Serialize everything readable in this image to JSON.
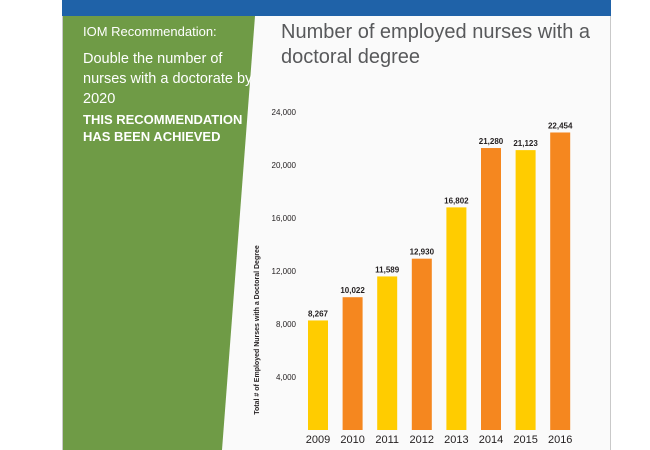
{
  "panel": {
    "label": "IOM Recommendation:",
    "text": "Double the number of nurses with a doctorate by 2020",
    "status": "THIS RECOMMENDATION HAS BEEN ACHIEVED"
  },
  "colors": {
    "banner": "#1f62a8",
    "panel_green": "#6f9b46",
    "bar_yellow": "#ffcc00",
    "bar_orange": "#f5871f"
  },
  "chart_data": {
    "type": "bar",
    "title": "Number of employed nurses with a doctoral degree",
    "ylabel": "Total # of Employed Nurses with a Doctoral Degree",
    "xlabel": "",
    "categories": [
      "2009",
      "2010",
      "2011",
      "2012",
      "2013",
      "2014",
      "2015",
      "2016"
    ],
    "values": [
      8267,
      10022,
      11589,
      12930,
      16802,
      21280,
      21123,
      22454
    ],
    "value_labels": [
      "8,267",
      "10,022",
      "11,589",
      "12,930",
      "16,802",
      "21,280",
      "21,123",
      "22,454"
    ],
    "bar_colors": [
      "#ffcc00",
      "#f5871f",
      "#ffcc00",
      "#f5871f",
      "#ffcc00",
      "#f5871f",
      "#ffcc00",
      "#f5871f"
    ],
    "yticks": [
      4000,
      8000,
      12000,
      16000,
      20000,
      24000
    ],
    "ytick_labels": [
      "4,000",
      "8,000",
      "12,000",
      "16,000",
      "20,000",
      "24,000"
    ],
    "ylim": [
      0,
      24000
    ],
    "grid": false,
    "legend": "none"
  }
}
